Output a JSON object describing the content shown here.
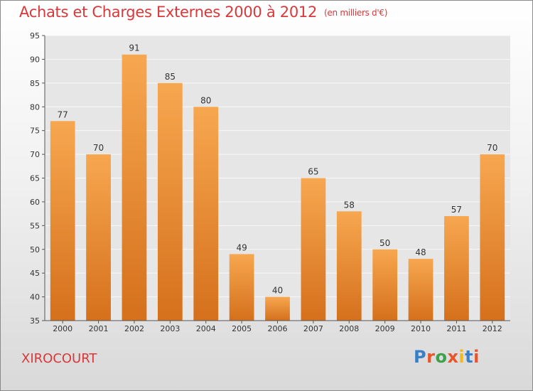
{
  "header": {
    "title": "Achats et Charges Externes 2000 à 2012",
    "subtitle": "(en milliers d'€)"
  },
  "footer": {
    "town": "XIROCOURT",
    "brand": "Proxiti"
  },
  "colors": {
    "title": "#d9383a",
    "bar_top": "#f7a750",
    "bar_bottom": "#d5701c",
    "logo_letters": [
      "#3a7fc5",
      "#e8552a",
      "#3aa24a",
      "#e8552a",
      "#f2b91e",
      "#3a7fc5",
      "#e8552a"
    ]
  },
  "chart_data": {
    "type": "bar",
    "categories": [
      "2000",
      "2001",
      "2002",
      "2003",
      "2004",
      "2005",
      "2006",
      "2007",
      "2008",
      "2009",
      "2010",
      "2011",
      "2012"
    ],
    "values": [
      77,
      70,
      91,
      85,
      80,
      49,
      40,
      65,
      58,
      50,
      48,
      57,
      70
    ],
    "ylim": [
      35,
      95
    ],
    "yticks": [
      35,
      40,
      45,
      50,
      55,
      60,
      65,
      70,
      75,
      80,
      85,
      90,
      95
    ],
    "grid": true,
    "legend": "none"
  }
}
